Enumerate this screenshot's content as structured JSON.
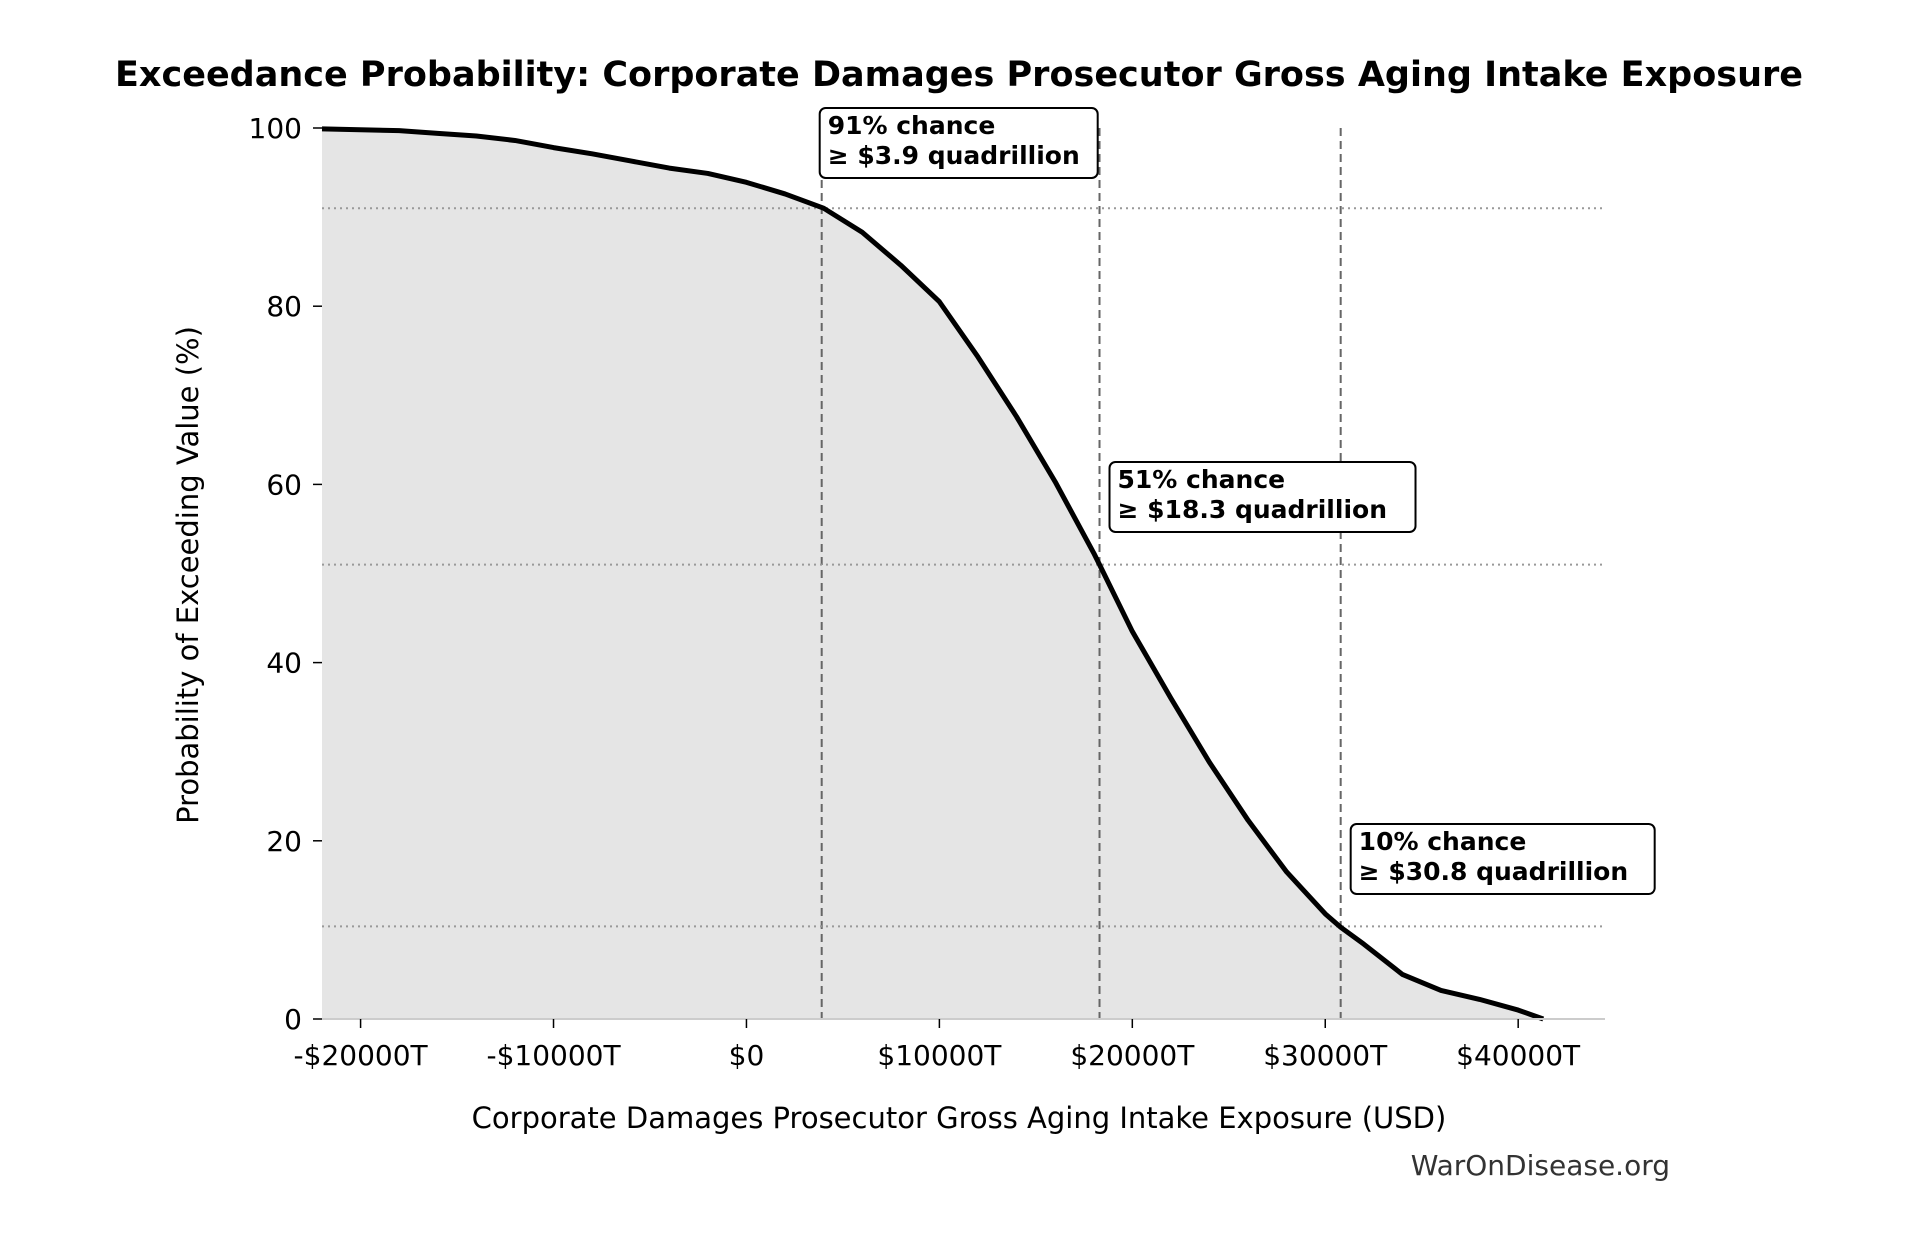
{
  "chart_data": {
    "type": "area",
    "title": "Exceedance Probability: Corporate Damages Prosecutor Gross Aging Intake Exposure",
    "xlabel": "Corporate Damages Prosecutor Gross Aging Intake Exposure (USD)",
    "ylabel": "Probability of Exceeding Value (%)",
    "xlim": [
      -22000,
      44500
    ],
    "ylim": [
      0,
      100
    ],
    "xticks": [
      {
        "value": -20000,
        "label": "-$20000T"
      },
      {
        "value": -10000,
        "label": "-$10000T"
      },
      {
        "value": 0,
        "label": "$0"
      },
      {
        "value": 10000,
        "label": "$10000T"
      },
      {
        "value": 20000,
        "label": "$20000T"
      },
      {
        "value": 30000,
        "label": "$30000T"
      },
      {
        "value": 40000,
        "label": "$40000T"
      }
    ],
    "yticks": [
      {
        "value": 0,
        "label": "0"
      },
      {
        "value": 20,
        "label": "20"
      },
      {
        "value": 40,
        "label": "40"
      },
      {
        "value": 60,
        "label": "60"
      },
      {
        "value": 80,
        "label": "80"
      },
      {
        "value": 100,
        "label": "100"
      }
    ],
    "series": [
      {
        "x": [
          -22000,
          -18000,
          -16000,
          -14000,
          -12000,
          -10000,
          -8000,
          -6000,
          -4000,
          -2000,
          0,
          2000,
          4000,
          6000,
          8000,
          10000,
          12000,
          14000,
          16000,
          18000,
          18300,
          20000,
          22000,
          24000,
          26000,
          28000,
          30000,
          30800,
          32000,
          34000,
          36000,
          38000,
          40000,
          41300
        ],
        "y": [
          99.9,
          99.7,
          99.4,
          99.1,
          98.6,
          97.8,
          97.1,
          96.3,
          95.5,
          94.9,
          93.9,
          92.6,
          91.0,
          88.3,
          84.6,
          80.5,
          74.3,
          67.6,
          60.3,
          52.3,
          51.0,
          43.5,
          36.0,
          28.8,
          22.3,
          16.5,
          11.8,
          10.3,
          8.4,
          5.0,
          3.2,
          2.2,
          1.0,
          0.0
        ],
        "color": "#000000",
        "fill": "#e5e5e5"
      }
    ],
    "thresholds": [
      {
        "x": 3900,
        "y": 91,
        "lines": [
          "91% chance",
          "≥ $3.9 quadrillion"
        ]
      },
      {
        "x": 18300,
        "y": 51,
        "lines": [
          "51% chance",
          "≥ $18.3 quadrillion"
        ]
      },
      {
        "x": 30800,
        "y": 10.4,
        "lines": [
          "10% chance",
          "≥ $30.8 quadrillion"
        ]
      }
    ],
    "watermark": "WarOnDisease.org"
  }
}
